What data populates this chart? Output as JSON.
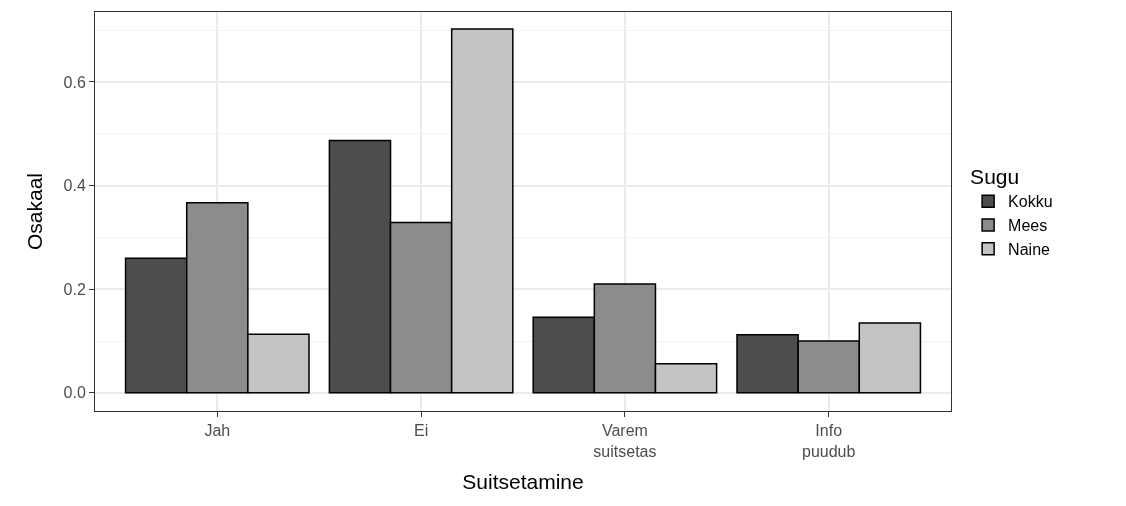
{
  "chart_data": {
    "type": "bar",
    "xlabel": "Suitsetamine",
    "ylabel": "Osakaal",
    "legend_title": "Sugu",
    "categories": [
      "Jah",
      "Ei",
      "Varem\nsuitsetas",
      "Info\npuudub"
    ],
    "series": [
      {
        "name": "Kokku",
        "color": "#4d4d4d",
        "values": [
          0.26,
          0.487,
          0.146,
          0.112
        ]
      },
      {
        "name": "Mees",
        "color": "#8c8c8c",
        "values": [
          0.367,
          0.329,
          0.21,
          0.1
        ]
      },
      {
        "name": "Naine",
        "color": "#c4c4c4",
        "values": [
          0.113,
          0.702,
          0.056,
          0.135
        ]
      }
    ],
    "ylim": [
      -0.035,
      0.735
    ],
    "yticks": [
      {
        "value": 0,
        "label": "0.0"
      },
      {
        "value": 0.2,
        "label": "0.2"
      },
      {
        "value": 0.4,
        "label": "0.4"
      },
      {
        "value": 0.6,
        "label": "0.6"
      }
    ],
    "grid": true,
    "legend": "right"
  }
}
